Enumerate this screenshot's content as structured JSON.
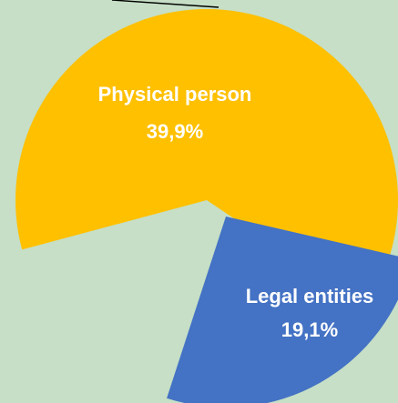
{
  "chart_data": {
    "type": "pie",
    "slices": [
      {
        "label": "Physical person",
        "value": 39.9,
        "value_label": "39,9%",
        "color": "#ffc000"
      },
      {
        "label": "Legal entities",
        "value": 19.1,
        "value_label": "19,1%",
        "color": "#4472c4"
      }
    ],
    "background_color": "#c6dfc6",
    "leader_line_color": "#000000",
    "exploded": true
  }
}
